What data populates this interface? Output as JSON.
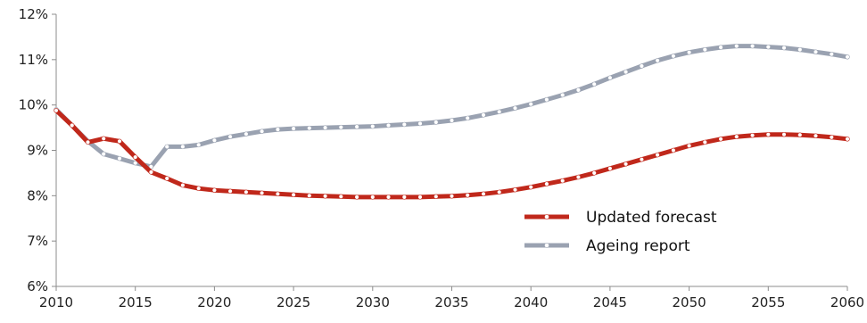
{
  "chart_data": {
    "type": "line",
    "title": "",
    "xlabel": "",
    "ylabel": "",
    "xlim": [
      2010,
      2060
    ],
    "ylim": [
      6,
      12
    ],
    "x_ticks": [
      2010,
      2015,
      2020,
      2025,
      2030,
      2035,
      2040,
      2045,
      2050,
      2055,
      2060
    ],
    "x_tick_labels": [
      "2010",
      "2015",
      "2020",
      "2025",
      "2030",
      "2035",
      "2040",
      "2045",
      "2050",
      "2055",
      "2060"
    ],
    "y_ticks": [
      6,
      7,
      8,
      9,
      10,
      11,
      12
    ],
    "y_tick_labels": [
      "6%",
      "7%",
      "8%",
      "9%",
      "10%",
      "11%",
      "12%"
    ],
    "grid": false,
    "legend_position": "bottom-right",
    "x": [
      2010,
      2011,
      2012,
      2013,
      2014,
      2015,
      2016,
      2017,
      2018,
      2019,
      2020,
      2021,
      2022,
      2023,
      2024,
      2025,
      2026,
      2027,
      2028,
      2029,
      2030,
      2031,
      2032,
      2033,
      2034,
      2035,
      2036,
      2037,
      2038,
      2039,
      2040,
      2041,
      2042,
      2043,
      2044,
      2045,
      2046,
      2047,
      2048,
      2049,
      2050,
      2051,
      2052,
      2053,
      2054,
      2055,
      2056,
      2057,
      2058,
      2059,
      2060
    ],
    "series": [
      {
        "name": "Updated forecast",
        "color": "#c0281b",
        "values": [
          9.88,
          9.55,
          9.18,
          9.26,
          9.2,
          8.85,
          8.52,
          8.38,
          8.23,
          8.16,
          8.12,
          8.1,
          8.08,
          8.06,
          8.04,
          8.02,
          8.0,
          7.99,
          7.98,
          7.97,
          7.97,
          7.97,
          7.97,
          7.97,
          7.98,
          7.99,
          8.01,
          8.04,
          8.08,
          8.13,
          8.19,
          8.26,
          8.33,
          8.41,
          8.5,
          8.6,
          8.7,
          8.8,
          8.9,
          9.0,
          9.1,
          9.18,
          9.25,
          9.3,
          9.33,
          9.35,
          9.35,
          9.34,
          9.32,
          9.29,
          9.25
        ]
      },
      {
        "name": "Ageing report",
        "color": "#9aa2b1",
        "values": [
          9.9,
          9.55,
          9.2,
          8.92,
          8.82,
          8.72,
          8.64,
          9.08,
          9.08,
          9.12,
          9.22,
          9.3,
          9.36,
          9.42,
          9.46,
          9.48,
          9.49,
          9.5,
          9.51,
          9.52,
          9.53,
          9.55,
          9.57,
          9.59,
          9.62,
          9.66,
          9.71,
          9.78,
          9.85,
          9.93,
          10.02,
          10.12,
          10.22,
          10.33,
          10.46,
          10.6,
          10.73,
          10.86,
          10.98,
          11.08,
          11.16,
          11.22,
          11.27,
          11.3,
          11.3,
          11.28,
          11.26,
          11.22,
          11.17,
          11.12,
          11.06
        ]
      }
    ]
  }
}
